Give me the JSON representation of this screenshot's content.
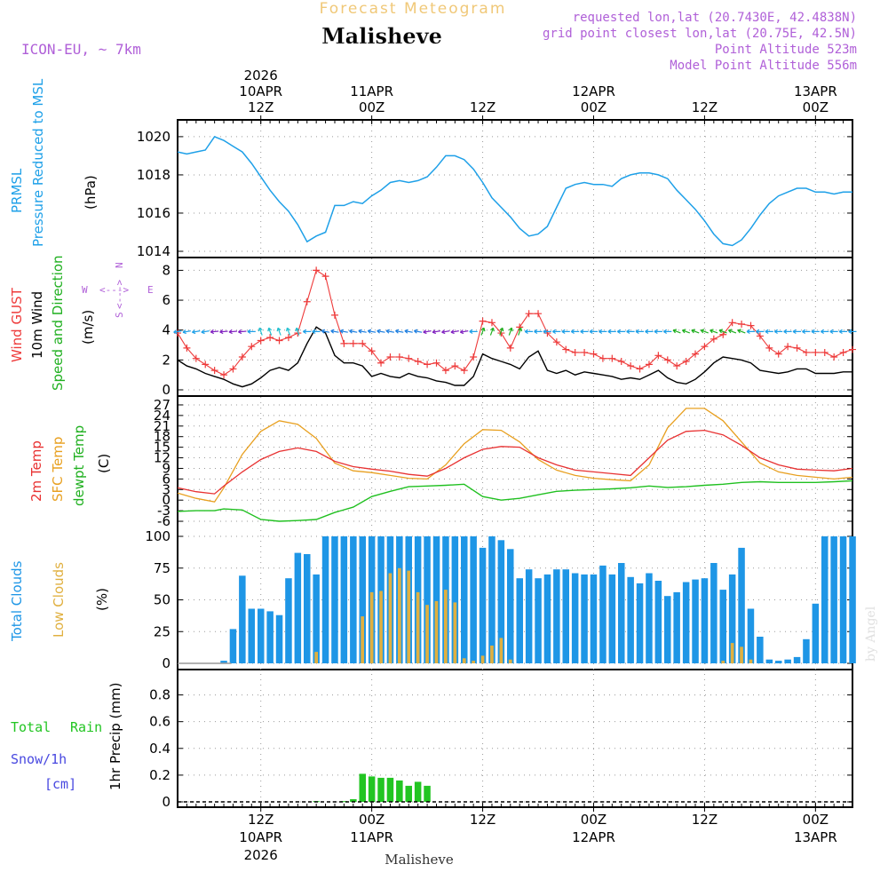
{
  "header": {
    "app_title": "Forecast Meteogram",
    "location": "Malisheve",
    "model": "ICON-EU, ~ 7km",
    "requested": "requested lon,lat (20.7430E, 42.4838N)",
    "grid_point": "grid point closest lon,lat (20.75E, 42.5N)",
    "point_altitude": "Point Altitude 523m",
    "model_altitude": "Model Point Altitude 556m",
    "footer_location": "Malisheve",
    "watermark": "by Angel"
  },
  "colors": {
    "pressure": "#1ea0e8",
    "gust": "#ee3a3a",
    "wind": "#000000",
    "temp": "#e83232",
    "sfc_temp": "#e8a020",
    "dewpt": "#20c020",
    "total_clouds": "#1e96e6",
    "low_clouds": "#e0b040",
    "rain": "#22c522",
    "snow": "#4848e0",
    "header_purple": "#b060d8",
    "title_orange": "#f0c878"
  },
  "time_axis": {
    "top": [
      {
        "t": 0,
        "lines": [
          "2026",
          "10APR",
          "12Z"
        ]
      },
      {
        "t": 12,
        "lines": [
          "11APR",
          "00Z"
        ]
      },
      {
        "t": 24,
        "lines": [
          "12Z"
        ]
      },
      {
        "t": 36,
        "lines": [
          "12APR",
          "00Z"
        ]
      },
      {
        "t": 48,
        "lines": [
          "12Z"
        ]
      },
      {
        "t": 60,
        "lines": [
          "13APR",
          "00Z"
        ]
      }
    ],
    "bottom": [
      {
        "t": 0,
        "lines": [
          "12Z",
          "10APR",
          "2026"
        ]
      },
      {
        "t": 12,
        "lines": [
          "00Z",
          "11APR"
        ]
      },
      {
        "t": 24,
        "lines": [
          "12Z"
        ]
      },
      {
        "t": 36,
        "lines": [
          "00Z",
          "12APR"
        ]
      },
      {
        "t": 48,
        "lines": [
          "12Z"
        ]
      },
      {
        "t": 60,
        "lines": [
          "00Z",
          "13APR"
        ]
      }
    ]
  },
  "panels": {
    "pressure": {
      "label1": "PRMSL",
      "label2": "Pressure Reduced to MSL",
      "unit": "(hPa)",
      "ticks": [
        "1014",
        "1016",
        "1018",
        "1020"
      ]
    },
    "wind": {
      "label1": "Wind GUST",
      "label2": "10m Wind",
      "label3": "Speed and Direction",
      "unit": "(m/s)",
      "ticks": [
        "0",
        "2",
        "4",
        "6",
        "8"
      ],
      "compass_w": "W",
      "compass_e": "E",
      "compass_n": "N",
      "compass_s": "S",
      "compass_arrow_h": "<--->",
      "compass_arrow_v": "<--->"
    },
    "temp": {
      "label1": "2m Temp",
      "label2": "SFC Temp",
      "label3": "dewpt Temp",
      "unit": "(C)",
      "ticks": [
        "-6",
        "-3",
        "0",
        "3",
        "6",
        "9",
        "12",
        "15",
        "18",
        "21",
        "24",
        "27"
      ]
    },
    "clouds": {
      "label1": "Total Clouds",
      "label2": "Low Clouds",
      "unit": "(%)",
      "ticks": [
        "0",
        "25",
        "50",
        "75",
        "100"
      ]
    },
    "precip": {
      "label1": "Total",
      "label1b": "Rain",
      "label2": "Snow/1h",
      "label3": "[cm]",
      "unit": "1hr Precip (mm)",
      "ticks": [
        "0",
        "0.2",
        "0.4",
        "0.6",
        "0.8"
      ]
    }
  },
  "chart_data": {
    "type": "line",
    "title": "Forecast Meteogram - Malisheve",
    "x_unit": "hours since 2026-04-10 12Z",
    "x_range": [
      -9,
      64
    ],
    "pressure": {
      "name": "PRMSL (hPa)",
      "ylim": [
        1014,
        1020.6
      ],
      "x": [
        -9,
        -8,
        -7,
        -6,
        -5,
        -4,
        -3,
        -2,
        -1,
        0,
        1,
        2,
        3,
        4,
        5,
        6,
        7,
        8,
        9,
        10,
        11,
        12,
        13,
        14,
        15,
        16,
        17,
        18,
        19,
        20,
        21,
        22,
        23,
        24,
        25,
        26,
        27,
        28,
        29,
        30,
        31,
        32,
        33,
        34,
        35,
        36,
        37,
        38,
        39,
        40,
        41,
        42,
        43,
        44,
        45,
        46,
        47,
        48,
        49,
        50,
        51,
        52,
        53,
        54,
        55,
        56,
        57,
        58,
        59,
        60,
        61,
        62,
        63,
        64
      ],
      "y": [
        1019.2,
        1019.1,
        1019.2,
        1019.3,
        1020.0,
        1019.8,
        1019.5,
        1019.2,
        1018.6,
        1017.9,
        1017.2,
        1016.6,
        1016.1,
        1015.4,
        1014.5,
        1014.8,
        1015.0,
        1016.4,
        1016.4,
        1016.6,
        1016.5,
        1016.9,
        1017.2,
        1017.6,
        1017.7,
        1017.6,
        1017.7,
        1017.9,
        1018.4,
        1019.0,
        1019.0,
        1018.8,
        1018.3,
        1017.6,
        1016.8,
        1016.3,
        1015.8,
        1015.2,
        1014.8,
        1014.9,
        1015.3,
        1016.3,
        1017.3,
        1017.5,
        1017.6,
        1017.5,
        1017.5,
        1017.4,
        1017.8,
        1018.0,
        1018.1,
        1018.1,
        1018.0,
        1017.8,
        1017.2,
        1016.7,
        1016.2,
        1015.6,
        1014.9,
        1014.4,
        1014.3,
        1014.6,
        1015.2,
        1015.9,
        1016.5,
        1016.9,
        1017.1,
        1017.3,
        1017.3,
        1017.1,
        1017.1,
        1017.0,
        1017.1,
        1017.1
      ]
    },
    "wind": {
      "ylim": [
        0,
        8.5
      ],
      "gust_x": [
        -9,
        -8,
        -7,
        -6,
        -5,
        -4,
        -3,
        -2,
        -1,
        0,
        1,
        2,
        3,
        4,
        5,
        6,
        7,
        8,
        9,
        10,
        11,
        12,
        13,
        14,
        15,
        16,
        17,
        18,
        19,
        20,
        21,
        22,
        23,
        24,
        25,
        26,
        27,
        28,
        29,
        30,
        31,
        32,
        33,
        34,
        35,
        36,
        37,
        38,
        39,
        40,
        41,
        42,
        43,
        44,
        45,
        46,
        47,
        48,
        49,
        50,
        51,
        52,
        53,
        54,
        55,
        56,
        57,
        58,
        59,
        60,
        61,
        62,
        63,
        64
      ],
      "gust": [
        3.8,
        2.8,
        2.1,
        1.7,
        1.3,
        1.0,
        1.4,
        2.2,
        2.9,
        3.3,
        3.5,
        3.3,
        3.5,
        3.8,
        5.9,
        8.0,
        7.6,
        5.0,
        3.1,
        3.1,
        3.1,
        2.6,
        1.8,
        2.2,
        2.2,
        2.1,
        1.9,
        1.7,
        1.8,
        1.3,
        1.6,
        1.3,
        2.2,
        4.6,
        4.5,
        3.8,
        2.8,
        4.2,
        5.1,
        5.1,
        3.8,
        3.2,
        2.7,
        2.5,
        2.5,
        2.4,
        2.1,
        2.1,
        1.9,
        1.6,
        1.4,
        1.7,
        2.3,
        2.0,
        1.6,
        1.9,
        2.4,
        2.9,
        3.4,
        3.7,
        4.5,
        4.4,
        4.3,
        3.6,
        2.8,
        2.4,
        2.9,
        2.8,
        2.5,
        2.5,
        2.5,
        2.2,
        2.5,
        2.7
      ],
      "speed": [
        2.0,
        1.6,
        1.4,
        1.1,
        0.9,
        0.7,
        0.4,
        0.2,
        0.4,
        0.8,
        1.3,
        1.5,
        1.3,
        1.8,
        3.1,
        4.2,
        3.8,
        2.3,
        1.8,
        1.8,
        1.6,
        0.9,
        1.1,
        0.9,
        0.8,
        1.1,
        0.9,
        0.8,
        0.6,
        0.5,
        0.3,
        0.3,
        0.9,
        2.4,
        2.1,
        1.9,
        1.7,
        1.4,
        2.2,
        2.6,
        1.3,
        1.1,
        1.3,
        1.0,
        1.2,
        1.1,
        1.0,
        0.9,
        0.7,
        0.8,
        0.7,
        1.0,
        1.3,
        0.8,
        0.5,
        0.4,
        0.7,
        1.2,
        1.8,
        2.2,
        2.1,
        2.0,
        1.8,
        1.3,
        1.2,
        1.1,
        1.2,
        1.4,
        1.4,
        1.1,
        1.1,
        1.1,
        1.2,
        1.2
      ],
      "direction_row": "arrows at ~4 m/s, mostly westerly (blue/teal), purple easterly near 11APR 00Z, green northerly near 12Z"
    },
    "temperature": {
      "ylim": [
        -7,
        28
      ],
      "x": [
        -9,
        -7,
        -5,
        -4,
        -2,
        0,
        2,
        4,
        6,
        8,
        10,
        12,
        14,
        16,
        18,
        20,
        22,
        24,
        26,
        28,
        30,
        32,
        34,
        36,
        38,
        40,
        42,
        44,
        46,
        48,
        50,
        52,
        54,
        56,
        58,
        60,
        62,
        64
      ],
      "t2m": [
        3.5,
        2.4,
        1.8,
        4.0,
        8.0,
        11.5,
        13.8,
        14.8,
        13.8,
        11.0,
        9.5,
        8.8,
        8.2,
        7.3,
        6.8,
        9.0,
        12.0,
        14.4,
        15.2,
        15.0,
        12.0,
        10.0,
        8.5,
        8.0,
        7.5,
        7.0,
        12.0,
        17.0,
        19.5,
        19.8,
        18.5,
        15.5,
        12.0,
        10.0,
        8.8,
        8.5,
        8.3,
        9.0
      ],
      "sfc": [
        2.0,
        0.5,
        -0.5,
        3.5,
        13.0,
        19.5,
        22.5,
        21.5,
        17.5,
        10.5,
        8.3,
        7.8,
        7.0,
        6.2,
        6.0,
        10.0,
        16.0,
        20.0,
        19.8,
        16.5,
        11.5,
        8.5,
        7.0,
        6.2,
        5.8,
        5.5,
        10.0,
        20.5,
        26.0,
        26.0,
        22.5,
        16.5,
        10.5,
        8.0,
        7.0,
        6.5,
        6.0,
        6.5
      ],
      "dewpt": [
        -3.2,
        -3.0,
        -3.0,
        -2.5,
        -2.8,
        -5.5,
        -6.0,
        -5.8,
        -5.5,
        -3.5,
        -2.0,
        1.0,
        2.5,
        3.8,
        4.0,
        4.2,
        4.5,
        1.0,
        0.0,
        0.5,
        1.5,
        2.5,
        2.8,
        3.0,
        3.2,
        3.5,
        4.0,
        3.6,
        3.8,
        4.2,
        4.5,
        5.0,
        5.2,
        5.0,
        5.0,
        5.0,
        5.2,
        5.5
      ]
    },
    "clouds": {
      "ylim": [
        0,
        100
      ],
      "x": [
        -9,
        -8,
        -7,
        -6,
        -5,
        -4,
        -3,
        -2,
        -1,
        0,
        1,
        2,
        3,
        4,
        5,
        6,
        7,
        8,
        9,
        10,
        11,
        12,
        13,
        14,
        15,
        16,
        17,
        18,
        19,
        20,
        21,
        22,
        23,
        24,
        25,
        26,
        27,
        28,
        29,
        30,
        31,
        32,
        33,
        34,
        35,
        36,
        37,
        38,
        39,
        40,
        41,
        42,
        43,
        44,
        45,
        46,
        47,
        48,
        49,
        50,
        51,
        52,
        53,
        54,
        55,
        56,
        57,
        58,
        59,
        60,
        61,
        62,
        63,
        64
      ],
      "total": [
        0,
        0,
        0,
        0,
        0,
        2,
        27,
        69,
        43,
        43,
        41,
        38,
        67,
        87,
        86,
        70,
        100,
        100,
        100,
        100,
        100,
        100,
        100,
        100,
        100,
        100,
        100,
        100,
        100,
        100,
        100,
        100,
        100,
        91,
        100,
        97,
        90,
        67,
        74,
        67,
        70,
        74,
        74,
        71,
        70,
        70,
        77,
        70,
        79,
        68,
        63,
        71,
        65,
        53,
        56,
        64,
        66,
        67,
        79,
        58,
        70,
        91,
        43,
        21,
        3,
        2,
        3,
        5,
        19,
        47,
        100,
        100,
        100,
        100
      ],
      "low": [
        0,
        0,
        0,
        0,
        0,
        0,
        0,
        0,
        0,
        0,
        0,
        0,
        0,
        0,
        0,
        9,
        0,
        0,
        0,
        0,
        37,
        56,
        57,
        71,
        75,
        73,
        56,
        46,
        49,
        58,
        48,
        4,
        2,
        6,
        14,
        20,
        3,
        0,
        0,
        0,
        0,
        0,
        0,
        0,
        0,
        0,
        0,
        0,
        0,
        0,
        0,
        0,
        0,
        0,
        0,
        0,
        0,
        0,
        0,
        2,
        16,
        13,
        3,
        0,
        0,
        0,
        0,
        0,
        0,
        0,
        0,
        0,
        0,
        0
      ]
    },
    "precip": {
      "ylim": [
        0,
        0.95
      ],
      "x": [
        -9,
        -8,
        -7,
        -6,
        -5,
        -4,
        -3,
        -2,
        -1,
        0,
        1,
        2,
        3,
        4,
        5,
        6,
        7,
        8,
        9,
        10,
        11,
        12,
        13,
        14,
        15,
        16,
        17,
        18,
        19,
        20,
        21,
        22,
        23,
        24,
        25,
        26,
        27,
        28,
        29,
        30,
        31,
        32,
        33,
        34,
        35,
        36,
        37,
        38,
        39,
        40,
        41,
        42,
        43,
        44,
        45,
        46,
        47,
        48,
        49,
        50,
        51,
        52,
        53,
        54,
        55,
        56,
        57,
        58,
        59,
        60,
        61,
        62,
        63,
        64
      ],
      "rain": [
        0,
        0,
        0,
        0,
        0,
        0,
        0,
        0,
        0,
        0,
        0,
        0,
        0,
        0,
        0,
        0.005,
        0,
        0,
        0.005,
        0.02,
        0.21,
        0.19,
        0.18,
        0.18,
        0.16,
        0.12,
        0.15,
        0.12,
        0,
        0,
        0,
        0,
        0,
        0,
        0,
        0,
        0,
        0,
        0,
        0,
        0,
        0,
        0,
        0,
        0,
        0,
        0,
        0,
        0,
        0,
        0,
        0,
        0,
        0,
        0,
        0,
        0,
        0,
        0,
        0,
        0,
        0,
        0,
        0,
        0,
        0,
        0,
        0,
        0,
        0,
        0,
        0,
        0,
        0
      ]
    }
  }
}
